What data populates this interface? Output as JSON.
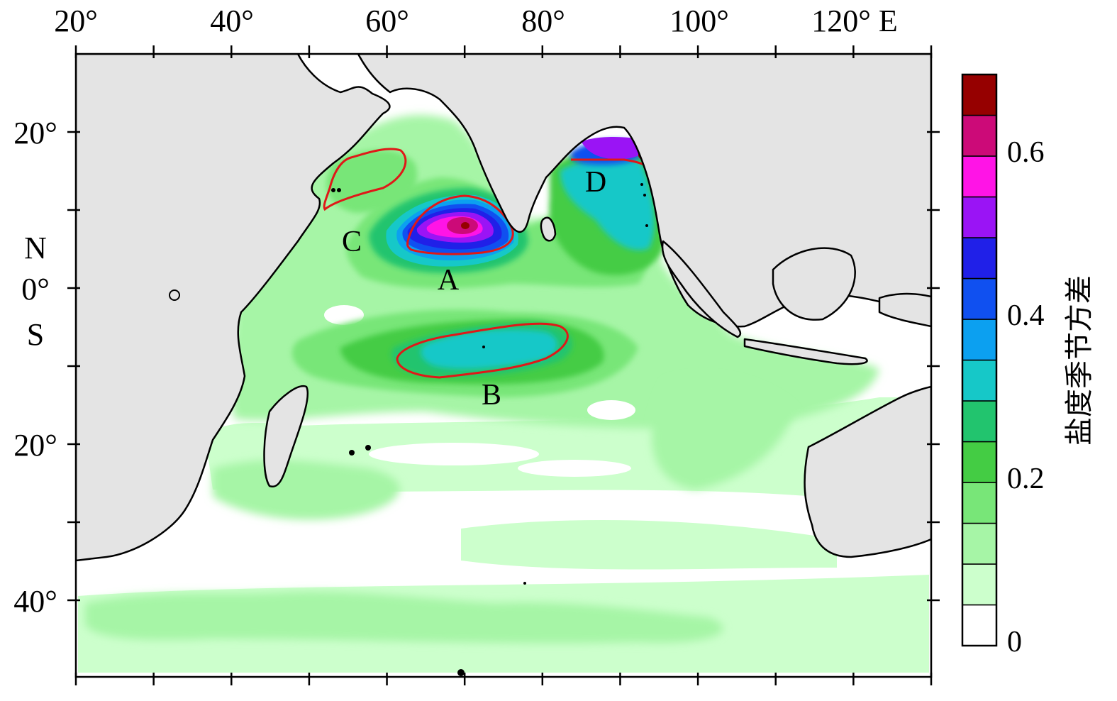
{
  "map": {
    "lon_labels": [
      "20°",
      "40°",
      "60°",
      "80°",
      "100°",
      "120° E"
    ],
    "lat_labels": [
      "20°",
      "N",
      "0°",
      "S",
      "20°",
      "40°"
    ],
    "region_labels": [
      "A",
      "B",
      "C",
      "D"
    ]
  },
  "colorbar": {
    "title": "盐度季节方差",
    "tick_labels": [
      "0",
      "0.2",
      "0.4",
      "0.6"
    ],
    "colors": [
      "#ffffff",
      "#ccffcc",
      "#a6f5a6",
      "#78e678",
      "#44cc44",
      "#22c46e",
      "#16c8c8",
      "#0ca0f0",
      "#1050f0",
      "#2020e8",
      "#9a14f5",
      "#ff14e6",
      "#cc0a78",
      "#960000"
    ]
  },
  "palette": {
    "land": "#e4e4e4",
    "contour": "#e01818",
    "coast": "#000000"
  }
}
